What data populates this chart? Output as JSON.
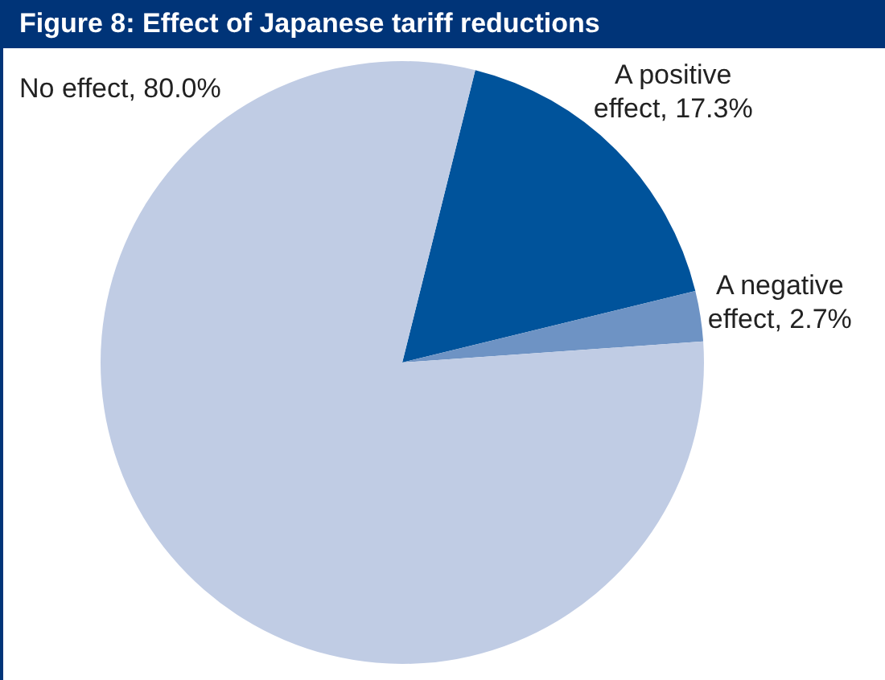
{
  "chart_data": {
    "type": "pie",
    "title": "Figure 8: Effect of Japanese tariff reductions",
    "categories": [
      "A positive effect",
      "A negative effect",
      "No effect"
    ],
    "values": [
      17.3,
      2.7,
      80.0
    ],
    "value_labels": [
      "17.3%",
      "2.7%",
      "80.0%"
    ],
    "colors": [
      "#00539b",
      "#6e93c4",
      "#c0cce4"
    ],
    "data_labels": true,
    "legend": false
  }
}
